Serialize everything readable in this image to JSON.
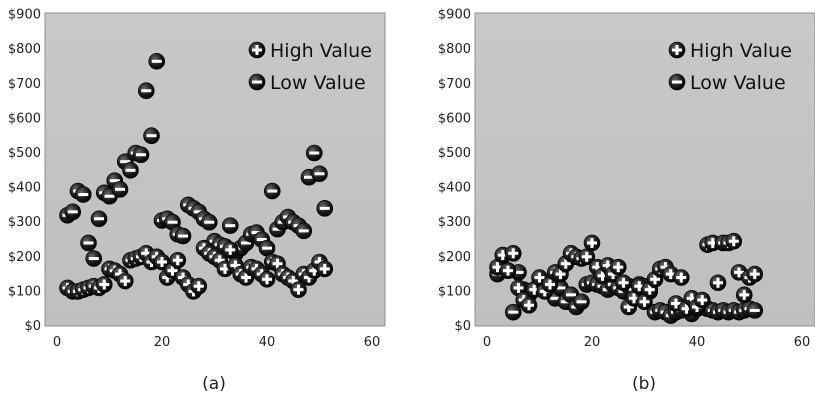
{
  "chart_data": [
    {
      "type": "scatter",
      "panel_label": "(a)",
      "xlim": [
        0,
        60
      ],
      "ylim": [
        0,
        900
      ],
      "x_ticks": [
        "0",
        "20",
        "40",
        "60"
      ],
      "y_ticks": [
        "$0",
        "$100",
        "$200",
        "$300",
        "$400",
        "$500",
        "$600",
        "$700",
        "$800",
        "$900"
      ],
      "grid": false,
      "legend_position": "top-right",
      "background_color": "#c3c3c3",
      "series": [
        {
          "name": "High Value",
          "marker": "plus-circle",
          "points": [
            [
              2,
              110
            ],
            [
              3,
              100
            ],
            [
              4,
              100
            ],
            [
              5,
              105
            ],
            [
              6,
              110
            ],
            [
              7,
              115
            ],
            [
              8,
              110
            ],
            [
              9,
              120
            ],
            [
              10,
              165
            ],
            [
              11,
              160
            ],
            [
              12,
              150
            ],
            [
              13,
              130
            ],
            [
              14,
              190
            ],
            [
              15,
              195
            ],
            [
              16,
              200
            ],
            [
              17,
              210
            ],
            [
              18,
              185
            ],
            [
              19,
              200
            ],
            [
              20,
              185
            ],
            [
              21,
              140
            ],
            [
              22,
              160
            ],
            [
              23,
              190
            ],
            [
              24,
              140
            ],
            [
              25,
              120
            ],
            [
              26,
              100
            ],
            [
              27,
              115
            ],
            [
              28,
              225
            ],
            [
              29,
              210
            ],
            [
              30,
              200
            ],
            [
              31,
              190
            ],
            [
              32,
              165
            ],
            [
              33,
              220
            ],
            [
              34,
              175
            ],
            [
              35,
              150
            ],
            [
              36,
              140
            ],
            [
              37,
              170
            ],
            [
              38,
              165
            ],
            [
              39,
              150
            ],
            [
              40,
              135
            ],
            [
              41,
              185
            ],
            [
              42,
              180
            ],
            [
              43,
              150
            ],
            [
              44,
              140
            ],
            [
              45,
              130
            ],
            [
              46,
              105
            ],
            [
              47,
              150
            ],
            [
              48,
              140
            ],
            [
              49,
              160
            ],
            [
              50,
              185
            ],
            [
              51,
              165
            ]
          ]
        },
        {
          "name": "Low Value",
          "marker": "minus-circle",
          "points": [
            [
              2,
              320
            ],
            [
              3,
              330
            ],
            [
              4,
              390
            ],
            [
              5,
              380
            ],
            [
              6,
              240
            ],
            [
              7,
              195
            ],
            [
              8,
              310
            ],
            [
              9,
              385
            ],
            [
              10,
              375
            ],
            [
              11,
              420
            ],
            [
              12,
              395
            ],
            [
              13,
              475
            ],
            [
              14,
              450
            ],
            [
              15,
              500
            ],
            [
              16,
              495
            ],
            [
              17,
              680
            ],
            [
              18,
              550
            ],
            [
              19,
              765
            ],
            [
              20,
              305
            ],
            [
              21,
              310
            ],
            [
              22,
              300
            ],
            [
              23,
              265
            ],
            [
              24,
              260
            ],
            [
              25,
              350
            ],
            [
              26,
              340
            ],
            [
              27,
              330
            ],
            [
              28,
              310
            ],
            [
              29,
              300
            ],
            [
              30,
              245
            ],
            [
              31,
              235
            ],
            [
              32,
              230
            ],
            [
              33,
              290
            ],
            [
              34,
              210
            ],
            [
              35,
              225
            ],
            [
              36,
              240
            ],
            [
              37,
              265
            ],
            [
              38,
              270
            ],
            [
              39,
              250
            ],
            [
              40,
              225
            ],
            [
              41,
              390
            ],
            [
              42,
              280
            ],
            [
              43,
              300
            ],
            [
              44,
              315
            ],
            [
              45,
              300
            ],
            [
              46,
              290
            ],
            [
              47,
              275
            ],
            [
              48,
              430
            ],
            [
              49,
              500
            ],
            [
              50,
              440
            ],
            [
              51,
              340
            ]
          ]
        }
      ]
    },
    {
      "type": "scatter",
      "panel_label": "(b)",
      "xlim": [
        0,
        60
      ],
      "ylim": [
        0,
        900
      ],
      "x_ticks": [
        "0",
        "20",
        "40",
        "60"
      ],
      "y_ticks": [
        "$0",
        "$100",
        "$200",
        "$300",
        "$400",
        "$500",
        "$600",
        "$700",
        "$800",
        "$900"
      ],
      "grid": false,
      "legend_position": "top-right",
      "background_color": "#c3c3c3",
      "series": [
        {
          "name": "High Value",
          "marker": "plus-circle",
          "points": [
            [
              2,
              170
            ],
            [
              3,
              205
            ],
            [
              4,
              160
            ],
            [
              5,
              210
            ],
            [
              6,
              110
            ],
            [
              7,
              75
            ],
            [
              8,
              60
            ],
            [
              9,
              105
            ],
            [
              10,
              140
            ],
            [
              11,
              100
            ],
            [
              12,
              120
            ],
            [
              13,
              155
            ],
            [
              14,
              150
            ],
            [
              15,
              180
            ],
            [
              16,
              210
            ],
            [
              17,
              200
            ],
            [
              18,
              195
            ],
            [
              19,
              200
            ],
            [
              20,
              240
            ],
            [
              21,
              170
            ],
            [
              22,
              145
            ],
            [
              23,
              175
            ],
            [
              24,
              150
            ],
            [
              25,
              170
            ],
            [
              26,
              125
            ],
            [
              27,
              55
            ],
            [
              28,
              80
            ],
            [
              29,
              115
            ],
            [
              30,
              70
            ],
            [
              31,
              105
            ],
            [
              32,
              135
            ],
            [
              33,
              165
            ],
            [
              34,
              170
            ],
            [
              35,
              150
            ],
            [
              36,
              65
            ],
            [
              37,
              140
            ],
            [
              38,
              50
            ],
            [
              39,
              80
            ],
            [
              40,
              55
            ],
            [
              41,
              75
            ],
            [
              42,
              235
            ],
            [
              43,
              240
            ],
            [
              44,
              125
            ],
            [
              45,
              240
            ],
            [
              46,
              240
            ],
            [
              47,
              245
            ],
            [
              48,
              155
            ],
            [
              49,
              90
            ],
            [
              50,
              140
            ],
            [
              51,
              150
            ]
          ]
        },
        {
          "name": "Low Value",
          "marker": "minus-circle",
          "points": [
            [
              2,
              150
            ],
            [
              3,
              170
            ],
            [
              4,
              160
            ],
            [
              5,
              40
            ],
            [
              6,
              155
            ],
            [
              7,
              105
            ],
            [
              8,
              90
            ],
            [
              9,
              105
            ],
            [
              10,
              120
            ],
            [
              11,
              115
            ],
            [
              12,
              120
            ],
            [
              13,
              80
            ],
            [
              14,
              110
            ],
            [
              15,
              70
            ],
            [
              16,
              90
            ],
            [
              17,
              55
            ],
            [
              18,
              70
            ],
            [
              19,
              120
            ],
            [
              20,
              125
            ],
            [
              21,
              120
            ],
            [
              22,
              115
            ],
            [
              23,
              105
            ],
            [
              24,
              120
            ],
            [
              25,
              110
            ],
            [
              26,
              100
            ],
            [
              27,
              115
            ],
            [
              28,
              105
            ],
            [
              29,
              120
            ],
            [
              30,
              115
            ],
            [
              31,
              100
            ],
            [
              32,
              40
            ],
            [
              33,
              45
            ],
            [
              34,
              40
            ],
            [
              35,
              30
            ],
            [
              36,
              40
            ],
            [
              37,
              45
            ],
            [
              38,
              55
            ],
            [
              39,
              35
            ],
            [
              40,
              50
            ],
            [
              41,
              60
            ],
            [
              42,
              50
            ],
            [
              43,
              45
            ],
            [
              44,
              40
            ],
            [
              45,
              45
            ],
            [
              46,
              40
            ],
            [
              47,
              45
            ],
            [
              48,
              40
            ],
            [
              49,
              45
            ],
            [
              50,
              50
            ],
            [
              51,
              45
            ]
          ]
        }
      ]
    }
  ]
}
